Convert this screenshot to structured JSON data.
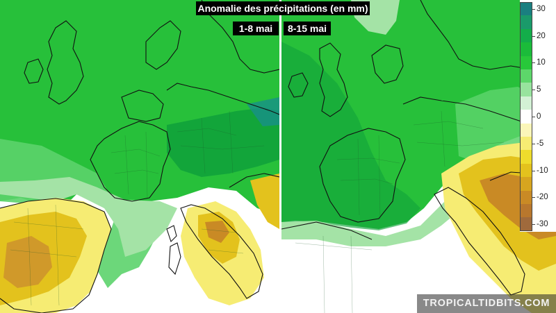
{
  "map": {
    "title": "Anomalie des précipitations (en mm)",
    "left_period": "1-8 mai",
    "right_period": "8-15 mai",
    "watermark": "TROPICALTIDBITS.COM"
  },
  "legend": {
    "unit": "mm",
    "items": [
      {
        "label": "30",
        "color": "#1a7f80"
      },
      {
        "label": "",
        "color": "#1a9a6a"
      },
      {
        "label": "20",
        "color": "#13ad4a"
      },
      {
        "label": "",
        "color": "#1bbb3a"
      },
      {
        "label": "10",
        "color": "#28c83a"
      },
      {
        "label": "",
        "color": "#5dd66a"
      },
      {
        "label": "5",
        "color": "#98e39e"
      },
      {
        "label": "",
        "color": "#d3f1d5"
      },
      {
        "label": "0",
        "color": "#ffffff"
      },
      {
        "label": "",
        "color": "#fbf6b9"
      },
      {
        "label": "-5",
        "color": "#f6ec73"
      },
      {
        "label": "",
        "color": "#eedc2c"
      },
      {
        "label": "-10",
        "color": "#e3c21d"
      },
      {
        "label": "",
        "color": "#d7a51f"
      },
      {
        "label": "-20",
        "color": "#c98a25"
      },
      {
        "label": "",
        "color": "#b8772d"
      },
      {
        "label": "-30",
        "color": "#a06a3c"
      }
    ]
  },
  "colors": {
    "strong_wet": "#12a53a",
    "wet": "#27c03a",
    "moderate_wet": "#5cd36b",
    "light_wet": "#a4e3a6",
    "neutral": "#ffffff",
    "light_dry": "#f6ec73",
    "dry": "#e3c21d",
    "very_dry": "#c98a25",
    "border": "#111111"
  }
}
